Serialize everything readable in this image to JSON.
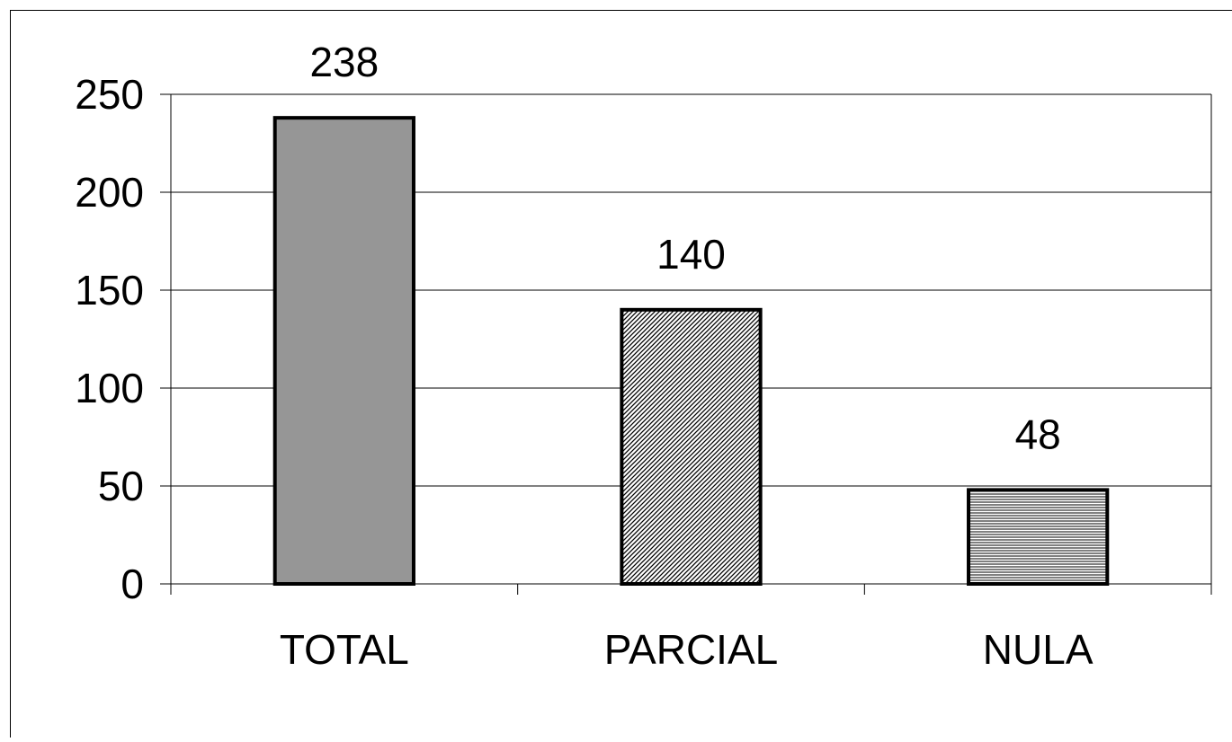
{
  "chart_data": {
    "type": "bar",
    "categories": [
      "TOTAL",
      "PARCIAL",
      "NULA"
    ],
    "values": [
      238,
      140,
      48
    ],
    "data_labels": [
      "238",
      "140",
      "48"
    ],
    "title": "",
    "xlabel": "",
    "ylabel": "",
    "ylim": [
      0,
      250
    ],
    "yticks": [
      0,
      50,
      100,
      150,
      200,
      250
    ],
    "ytick_labels": [
      "0",
      "50",
      "100",
      "150",
      "200",
      "250"
    ],
    "grid": true,
    "legend": "none",
    "bar_fills": [
      "solid-gray",
      "diagonal-hatch",
      "horizontal-hatch"
    ],
    "colors": {
      "bar_total": "#969696",
      "outline": "#000000",
      "background": "#ffffff"
    }
  }
}
